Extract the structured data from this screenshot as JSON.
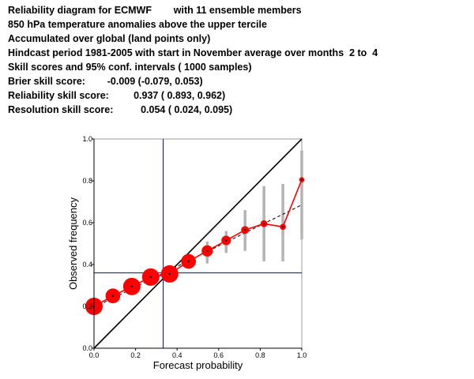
{
  "header": {
    "lines": [
      "Reliability diagram for ECMWF        with 11 ensemble members",
      "850 hPa temperature anomalies above the upper tercile",
      "Accumulated over global (land points only)",
      "Hindcast period 1981-2005 with start in November average over months  2 to  4",
      "Skill scores and 95% conf. intervals ( 1000 samples)",
      "Brier skill score:        -0.009 (-0.079, 0.053)",
      "Reliability skill score:         0.937 ( 0.893, 0.962)",
      "Resolution skill score:          0.054 ( 0.024, 0.095)"
    ]
  },
  "chart_data": {
    "type": "scatter",
    "xlabel": "Forecast probability",
    "ylabel": "Observed frequency",
    "xlim": [
      0,
      1
    ],
    "ylim": [
      0,
      1
    ],
    "xticks": [
      "0.0",
      "0.2",
      "0.4",
      "0.6",
      "0.8",
      "1.0"
    ],
    "yticks": [
      "0.0",
      "0.2",
      "0.4",
      "0.6",
      "0.8",
      "1.0"
    ],
    "climatology_x": 0.333,
    "climatology_y": 0.36,
    "colors": {
      "reliability": "#ff0000",
      "diagonal": "#000000",
      "climatology": "#0000cc",
      "confidence": "#b4b4b4",
      "fit": "#000000",
      "frame": "#999999"
    },
    "points": [
      {
        "x": 0.0,
        "y": 0.2,
        "size": 1.0,
        "ci": [
          0.195,
          0.205
        ]
      },
      {
        "x": 0.091,
        "y": 0.25,
        "size": 0.85,
        "ci": [
          0.215,
          0.285
        ]
      },
      {
        "x": 0.182,
        "y": 0.295,
        "size": 1.0,
        "ci": [
          0.265,
          0.315
        ]
      },
      {
        "x": 0.273,
        "y": 0.34,
        "size": 1.0,
        "ci": [
          0.325,
          0.355
        ]
      },
      {
        "x": 0.364,
        "y": 0.355,
        "size": 1.0,
        "ci": [
          0.33,
          0.38
        ]
      },
      {
        "x": 0.455,
        "y": 0.415,
        "size": 0.85,
        "ci": [
          0.385,
          0.45
        ]
      },
      {
        "x": 0.545,
        "y": 0.465,
        "size": 0.65,
        "ci": [
          0.405,
          0.51
        ]
      },
      {
        "x": 0.636,
        "y": 0.515,
        "size": 0.55,
        "ci": [
          0.455,
          0.56
        ]
      },
      {
        "x": 0.727,
        "y": 0.565,
        "size": 0.45,
        "ci": [
          0.465,
          0.66
        ]
      },
      {
        "x": 0.818,
        "y": 0.595,
        "size": 0.4,
        "ci": [
          0.415,
          0.775
        ]
      },
      {
        "x": 0.909,
        "y": 0.58,
        "size": 0.35,
        "ci": [
          0.415,
          0.785
        ]
      },
      {
        "x": 1.0,
        "y": 0.805,
        "size": 0.3,
        "ci": [
          0.52,
          0.945
        ]
      }
    ],
    "fit_line": {
      "x": [
        0.0,
        1.0
      ],
      "y": [
        0.195,
        0.685
      ]
    }
  }
}
